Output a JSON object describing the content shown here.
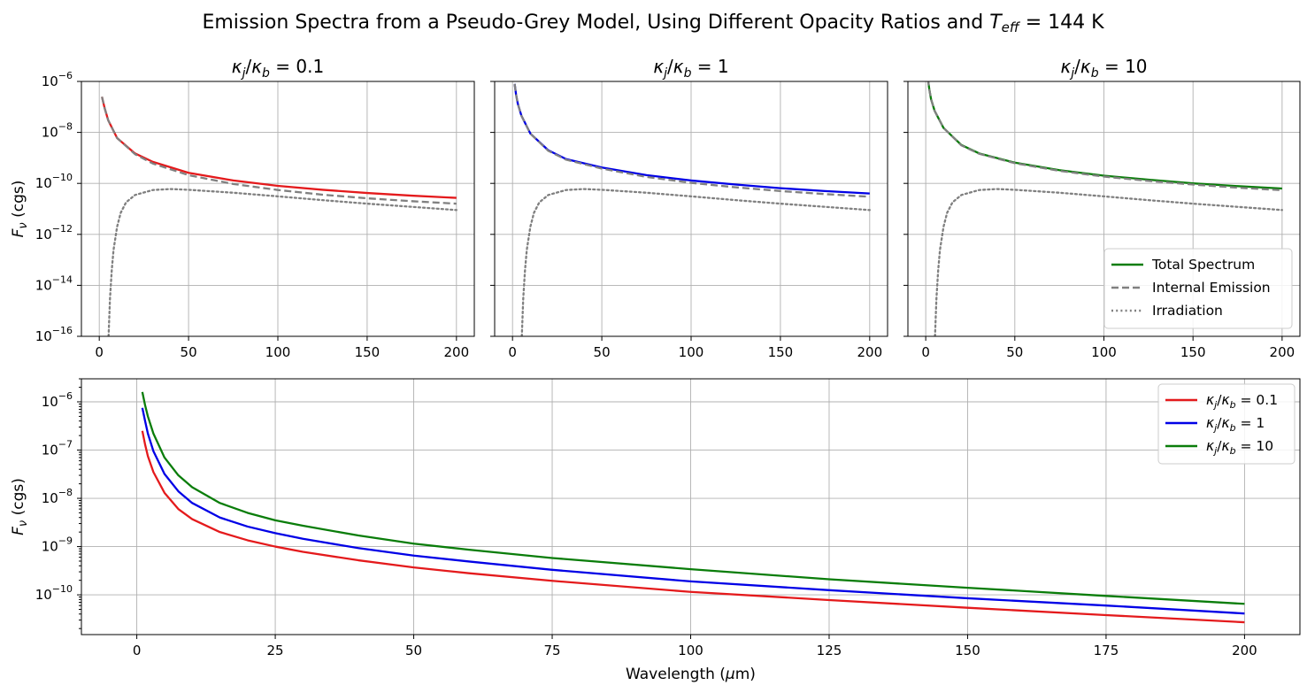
{
  "figure": {
    "suptitle_prefix": "Emission Spectra from a Pseudo-Grey Model, Using Different Opacity Ratios and ",
    "suptitle_var": "T",
    "suptitle_sub": "eff",
    "suptitle_suffix": " = 144 K"
  },
  "colors": {
    "ratio_0_1": "#e41a1c",
    "ratio_1": "#0000e6",
    "ratio_10": "#0a7d0a",
    "component_gray": "#808080",
    "grid": "#b0b0b0"
  },
  "chart_data": [
    {
      "type": "line",
      "panel": "top-left",
      "title_ratio": "0.1",
      "ylabel_var": "F",
      "ylabel_sub": "ν",
      "ylabel_unit": " (cgs)",
      "xlabel": "",
      "xlim": [
        -10,
        210
      ],
      "ylim": [
        1e-16,
        1e-06
      ],
      "yscale": "log",
      "grid": true,
      "xticks": [
        0,
        50,
        100,
        150,
        200
      ],
      "ytick_exponents": [
        -16,
        -14,
        -12,
        -10,
        -8,
        -6
      ],
      "series": [
        {
          "role": "total",
          "color_key": "ratio_0_1",
          "style": "solid",
          "x": [
            1.5,
            3,
            5,
            10,
            20,
            30,
            50,
            75,
            100,
            125,
            150,
            175,
            200
          ],
          "y": [
            2.5e-07,
            9e-08,
            3e-08,
            6e-09,
            1.5e-09,
            7e-10,
            2.6e-10,
            1.3e-10,
            8e-11,
            5.6e-11,
            4.2e-11,
            3.3e-11,
            2.7e-11
          ]
        },
        {
          "role": "internal",
          "color_key": "component_gray",
          "style": "dashed",
          "x": [
            1.5,
            3,
            5,
            10,
            20,
            30,
            50,
            75,
            100,
            125,
            150,
            175,
            200
          ],
          "y": [
            2.5e-07,
            9e-08,
            3e-08,
            6e-09,
            1.4e-09,
            6e-10,
            2.1e-10,
            9.5e-11,
            5.5e-11,
            3.6e-11,
            2.6e-11,
            2e-11,
            1.6e-11
          ]
        },
        {
          "role": "irradiation",
          "color_key": "component_gray",
          "style": "dotted",
          "x": [
            5.2,
            6,
            7,
            8,
            10,
            12,
            15,
            20,
            30,
            40,
            50,
            75,
            100,
            125,
            150,
            175,
            200
          ],
          "y": [
            1e-16,
            3e-15,
            4e-14,
            2.5e-13,
            2e-12,
            7e-12,
            1.8e-11,
            3.5e-11,
            5.5e-11,
            6e-11,
            5.6e-11,
            4.3e-11,
            3.1e-11,
            2.2e-11,
            1.6e-11,
            1.2e-11,
            9e-12
          ]
        }
      ]
    },
    {
      "type": "line",
      "panel": "top-middle",
      "title_ratio": "1",
      "xlim": [
        -10,
        210
      ],
      "ylim": [
        1e-16,
        1e-06
      ],
      "yscale": "log",
      "grid": true,
      "xticks": [
        0,
        50,
        100,
        150,
        200
      ],
      "series": [
        {
          "role": "total",
          "color_key": "ratio_1",
          "style": "solid",
          "x": [
            1.2,
            2,
            3,
            5,
            10,
            20,
            30,
            50,
            75,
            100,
            125,
            150,
            175,
            200
          ],
          "y": [
            8e-07,
            3e-07,
            1.3e-07,
            4.5e-08,
            9e-09,
            2e-09,
            9e-10,
            4.2e-10,
            2.1e-10,
            1.3e-10,
            9e-11,
            6.5e-11,
            5e-11,
            4e-11
          ]
        },
        {
          "role": "internal",
          "color_key": "component_gray",
          "style": "dashed",
          "x": [
            1.2,
            2,
            3,
            5,
            10,
            20,
            30,
            50,
            75,
            100,
            125,
            150,
            175,
            200
          ],
          "y": [
            8e-07,
            3e-07,
            1.3e-07,
            4.5e-08,
            9e-09,
            1.9e-09,
            8.5e-10,
            3.8e-10,
            1.8e-10,
            1.05e-10,
            7e-11,
            5e-11,
            3.8e-11,
            3e-11
          ]
        },
        {
          "role": "irradiation",
          "color_key": "component_gray",
          "style": "dotted",
          "x": [
            5.2,
            6,
            7,
            8,
            10,
            12,
            15,
            20,
            30,
            40,
            50,
            75,
            100,
            125,
            150,
            175,
            200
          ],
          "y": [
            1e-16,
            3e-15,
            4e-14,
            2.5e-13,
            2e-12,
            7e-12,
            1.8e-11,
            3.5e-11,
            5.5e-11,
            6e-11,
            5.6e-11,
            4.3e-11,
            3.1e-11,
            2.2e-11,
            1.6e-11,
            1.2e-11,
            9e-12
          ]
        }
      ]
    },
    {
      "type": "line",
      "panel": "top-right",
      "title_ratio": "10",
      "xlim": [
        -10,
        210
      ],
      "ylim": [
        1e-16,
        1e-06
      ],
      "yscale": "log",
      "grid": true,
      "xticks": [
        0,
        50,
        100,
        150,
        200
      ],
      "legend_position": "lower-right",
      "legend": [
        {
          "label": "Total Spectrum",
          "color_key": "ratio_10",
          "style": "solid"
        },
        {
          "label": "Internal Emission",
          "color_key": "component_gray",
          "style": "dashed"
        },
        {
          "label": "Irradiation",
          "color_key": "component_gray",
          "style": "dotted"
        }
      ],
      "series": [
        {
          "role": "total",
          "color_key": "ratio_10",
          "style": "solid",
          "x": [
            1.2,
            2,
            3,
            5,
            10,
            20,
            30,
            50,
            75,
            100,
            125,
            150,
            175,
            200
          ],
          "y": [
            1.3e-06,
            5e-07,
            2e-07,
            7e-08,
            1.5e-08,
            3.2e-09,
            1.5e-09,
            6.5e-10,
            3.3e-10,
            2e-10,
            1.4e-10,
            1e-10,
            7.8e-11,
            6.3e-11
          ]
        },
        {
          "role": "internal",
          "color_key": "component_gray",
          "style": "dashed",
          "x": [
            1.2,
            2,
            3,
            5,
            10,
            20,
            30,
            50,
            75,
            100,
            125,
            150,
            175,
            200
          ],
          "y": [
            1.3e-06,
            5e-07,
            2e-07,
            7e-08,
            1.5e-08,
            3.1e-09,
            1.45e-09,
            6.2e-10,
            3.1e-10,
            1.85e-10,
            1.25e-10,
            9e-11,
            6.8e-11,
            5.4e-11
          ]
        },
        {
          "role": "irradiation",
          "color_key": "component_gray",
          "style": "dotted",
          "x": [
            5.2,
            6,
            7,
            8,
            10,
            12,
            15,
            20,
            30,
            40,
            50,
            75,
            100,
            125,
            150,
            175,
            200
          ],
          "y": [
            1e-16,
            3e-15,
            4e-14,
            2.5e-13,
            2e-12,
            7e-12,
            1.8e-11,
            3.5e-11,
            5.5e-11,
            6e-11,
            5.6e-11,
            4.3e-11,
            3.1e-11,
            2.2e-11,
            1.6e-11,
            1.2e-11,
            9e-12
          ]
        }
      ]
    },
    {
      "type": "line",
      "panel": "bottom",
      "ylabel_var": "F",
      "ylabel_sub": "ν",
      "ylabel_unit": " (cgs)",
      "xlabel_prefix": "Wavelength (",
      "xlabel_var": "μ",
      "xlabel_suffix": "m)",
      "xlim": [
        -10,
        210
      ],
      "ylim": [
        1.5e-11,
        3e-06
      ],
      "yscale": "log",
      "grid": true,
      "xticks": [
        0,
        25,
        50,
        75,
        100,
        125,
        150,
        175,
        200
      ],
      "ytick_exponents": [
        -10,
        -9,
        -8,
        -7,
        -6
      ],
      "legend_position": "upper-right",
      "legend": [
        {
          "ratio": "0.1",
          "color_key": "ratio_0_1",
          "style": "solid"
        },
        {
          "ratio": "1",
          "color_key": "ratio_1",
          "style": "solid"
        },
        {
          "ratio": "10",
          "color_key": "ratio_10",
          "style": "solid"
        }
      ],
      "series": [
        {
          "ratio": "0.1",
          "color_key": "ratio_0_1",
          "x": [
            1,
            1.5,
            2,
            3,
            5,
            7.5,
            10,
            15,
            20,
            25,
            30,
            40,
            50,
            60,
            75,
            100,
            125,
            150,
            175,
            200
          ],
          "y": [
            2.5e-07,
            1.3e-07,
            7.5e-08,
            3.5e-08,
            1.3e-08,
            6e-09,
            3.7e-09,
            2e-09,
            1.35e-09,
            1e-09,
            7.8e-10,
            5.2e-10,
            3.7e-10,
            2.8e-10,
            1.95e-10,
            1.15e-10,
            7.8e-11,
            5.4e-11,
            3.8e-11,
            2.7e-11
          ]
        },
        {
          "ratio": "1",
          "color_key": "ratio_1",
          "x": [
            1,
            1.5,
            2,
            3,
            5,
            7.5,
            10,
            15,
            20,
            25,
            30,
            40,
            50,
            60,
            75,
            100,
            125,
            150,
            175,
            200
          ],
          "y": [
            7.5e-07,
            4e-07,
            2.2e-07,
            9.5e-08,
            3.2e-08,
            1.4e-08,
            8e-09,
            4e-09,
            2.6e-09,
            1.9e-09,
            1.45e-09,
            9.3e-10,
            6.5e-10,
            4.9e-10,
            3.3e-10,
            1.9e-10,
            1.25e-10,
            8.5e-11,
            6e-11,
            4.1e-11
          ]
        },
        {
          "ratio": "10",
          "color_key": "ratio_10",
          "x": [
            1,
            1.5,
            2,
            3,
            5,
            7.5,
            10,
            15,
            20,
            25,
            30,
            40,
            50,
            60,
            75,
            100,
            125,
            150,
            175,
            200
          ],
          "y": [
            1.6e-06,
            8.5e-07,
            5e-07,
            2.2e-07,
            7e-08,
            3e-08,
            1.7e-08,
            8e-09,
            5e-09,
            3.5e-09,
            2.7e-09,
            1.7e-09,
            1.15e-09,
            8.6e-10,
            5.8e-10,
            3.4e-10,
            2.1e-10,
            1.4e-10,
            9.5e-11,
            6.5e-11
          ]
        }
      ]
    }
  ]
}
